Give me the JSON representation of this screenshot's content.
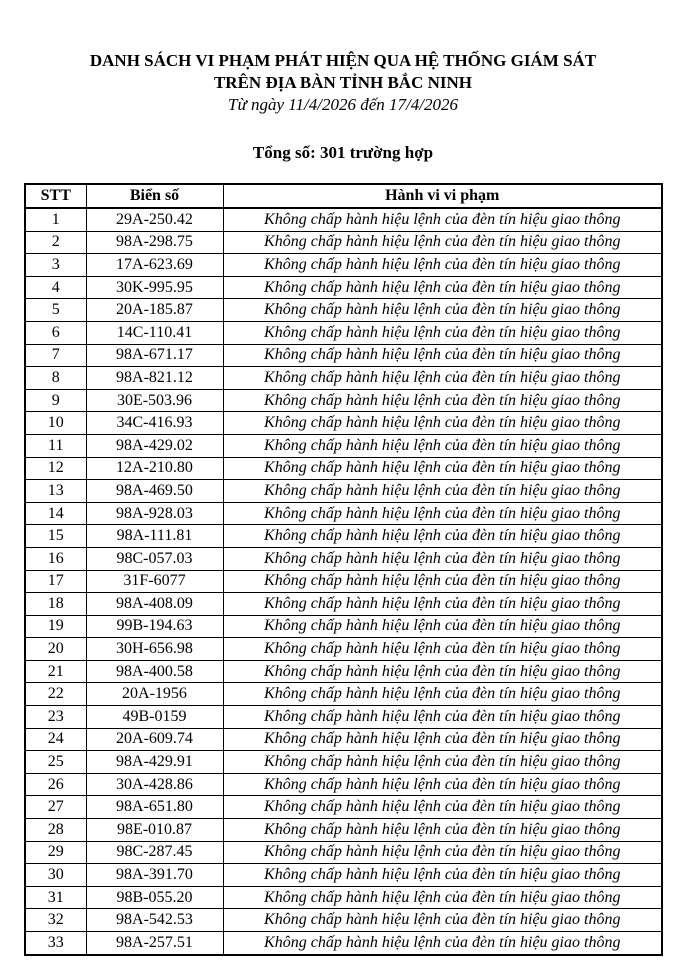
{
  "header": {
    "title_line1": "DANH SÁCH VI PHẠM PHÁT HIỆN QUA HỆ THỐNG GIÁM SÁT",
    "title_line2": "TRÊN ĐỊA BÀN TỈNH BẮC NINH",
    "date_range": "Từ ngày 11/4/2026 đến 17/4/2026",
    "total": "Tổng số: 301 trường hợp"
  },
  "table": {
    "columns": [
      "STT",
      "Biển số",
      "Hành vi vi phạm"
    ],
    "rows": [
      [
        "1",
        "29A-250.42",
        "Không chấp hành hiệu lệnh của đèn tín hiệu giao thông"
      ],
      [
        "2",
        "98A-298.75",
        "Không chấp hành hiệu lệnh của đèn tín hiệu giao thông"
      ],
      [
        "3",
        "17A-623.69",
        "Không chấp hành hiệu lệnh của đèn tín hiệu giao thông"
      ],
      [
        "4",
        "30K-995.95",
        "Không chấp hành hiệu lệnh của đèn tín hiệu giao thông"
      ],
      [
        "5",
        "20A-185.87",
        "Không chấp hành hiệu lệnh của đèn tín hiệu giao thông"
      ],
      [
        "6",
        "14C-110.41",
        "Không chấp hành hiệu lệnh của đèn tín hiệu giao thông"
      ],
      [
        "7",
        "98A-671.17",
        "Không chấp hành hiệu lệnh của đèn tín hiệu giao thông"
      ],
      [
        "8",
        "98A-821.12",
        "Không chấp hành hiệu lệnh của đèn tín hiệu giao thông"
      ],
      [
        "9",
        "30E-503.96",
        "Không chấp hành hiệu lệnh của đèn tín hiệu giao thông"
      ],
      [
        "10",
        "34C-416.93",
        "Không chấp hành hiệu lệnh của đèn tín hiệu giao thông"
      ],
      [
        "11",
        "98A-429.02",
        "Không chấp hành hiệu lệnh của đèn tín hiệu giao thông"
      ],
      [
        "12",
        "12A-210.80",
        "Không chấp hành hiệu lệnh của đèn tín hiệu giao thông"
      ],
      [
        "13",
        "98A-469.50",
        "Không chấp hành hiệu lệnh của đèn tín hiệu giao thông"
      ],
      [
        "14",
        "98A-928.03",
        "Không chấp hành hiệu lệnh của đèn tín hiệu giao thông"
      ],
      [
        "15",
        "98A-111.81",
        "Không chấp hành hiệu lệnh của đèn tín hiệu giao thông"
      ],
      [
        "16",
        "98C-057.03",
        "Không chấp hành hiệu lệnh của đèn tín hiệu giao thông"
      ],
      [
        "17",
        "31F-6077",
        "Không chấp hành hiệu lệnh của đèn tín hiệu giao thông"
      ],
      [
        "18",
        "98A-408.09",
        "Không chấp hành hiệu lệnh của đèn tín hiệu giao thông"
      ],
      [
        "19",
        "99B-194.63",
        "Không chấp hành hiệu lệnh của đèn tín hiệu giao thông"
      ],
      [
        "20",
        "30H-656.98",
        "Không chấp hành hiệu lệnh của đèn tín hiệu giao thông"
      ],
      [
        "21",
        "98A-400.58",
        "Không chấp hành hiệu lệnh của đèn tín hiệu giao thông"
      ],
      [
        "22",
        "20A-1956",
        "Không chấp hành hiệu lệnh của đèn tín hiệu giao thông"
      ],
      [
        "23",
        "49B-0159",
        "Không chấp hành hiệu lệnh của đèn tín hiệu giao thông"
      ],
      [
        "24",
        "20A-609.74",
        "Không chấp hành hiệu lệnh của đèn tín hiệu giao thông"
      ],
      [
        "25",
        "98A-429.91",
        "Không chấp hành hiệu lệnh của đèn tín hiệu giao thông"
      ],
      [
        "26",
        "30A-428.86",
        "Không chấp hành hiệu lệnh của đèn tín hiệu giao thông"
      ],
      [
        "27",
        "98A-651.80",
        "Không chấp hành hiệu lệnh của đèn tín hiệu giao thông"
      ],
      [
        "28",
        "98E-010.87",
        "Không chấp hành hiệu lệnh của đèn tín hiệu giao thông"
      ],
      [
        "29",
        "98C-287.45",
        "Không chấp hành hiệu lệnh của đèn tín hiệu giao thông"
      ],
      [
        "30",
        "98A-391.70",
        "Không chấp hành hiệu lệnh của đèn tín hiệu giao thông"
      ],
      [
        "31",
        "98B-055.20",
        "Không chấp hành hiệu lệnh của đèn tín hiệu giao thông"
      ],
      [
        "32",
        "98A-542.53",
        "Không chấp hành hiệu lệnh của đèn tín hiệu giao thông"
      ],
      [
        "33",
        "98A-257.51",
        "Không chấp hành hiệu lệnh của đèn tín hiệu giao thông"
      ]
    ]
  }
}
